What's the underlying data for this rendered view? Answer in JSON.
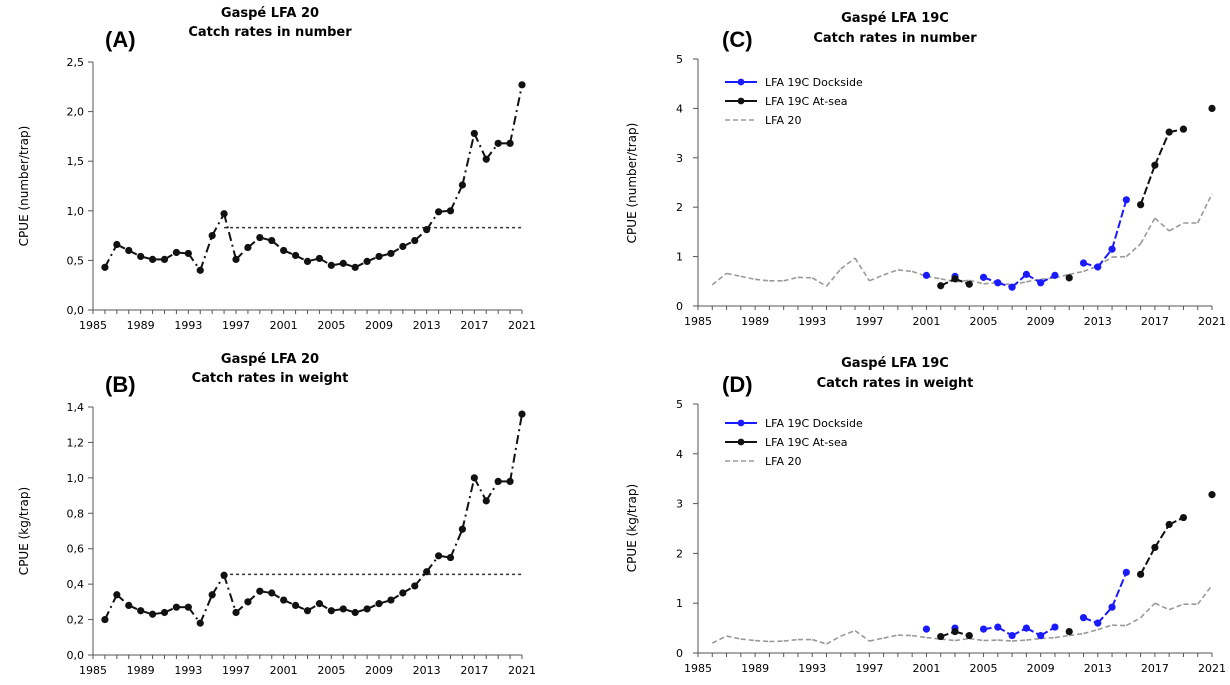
{
  "chart_data": [
    {
      "type": "line",
      "letter": "(A)",
      "title": [
        "Gaspé LFA 20",
        "Catch rates in number"
      ],
      "ylabel": "CPUE (number/trap)",
      "ylim": [
        0,
        2.5
      ],
      "yticks": [
        0,
        0.5,
        1.0,
        1.5,
        2.0,
        2.5
      ],
      "ytick_labels": [
        "0,0",
        "0,5",
        "1,0",
        "1,5",
        "2,0",
        "2,5"
      ],
      "xlim": [
        1985,
        2021
      ],
      "xticks": [
        "1985",
        "1989",
        "1993",
        "1997",
        "2001",
        "2005",
        "2009",
        "2013",
        "2017",
        "2021"
      ],
      "reference_line": {
        "value": 0.83,
        "from": 1996,
        "to": 2021
      },
      "series": [
        {
          "color": "#111111",
          "style": "dashdot",
          "markers": true,
          "x": [
            1986,
            1987,
            1988,
            1989,
            1990,
            1991,
            1992,
            1993,
            1994,
            1995,
            1996,
            1997,
            1998,
            1999,
            2000,
            2001,
            2002,
            2003,
            2004,
            2005,
            2006,
            2007,
            2008,
            2009,
            2010,
            2011,
            2012,
            2013,
            2014,
            2015,
            2016,
            2017,
            2018,
            2019,
            2020,
            2021
          ],
          "values": [
            0.43,
            0.66,
            0.6,
            0.54,
            0.51,
            0.51,
            0.58,
            0.57,
            0.4,
            0.75,
            0.97,
            0.51,
            0.63,
            0.73,
            0.7,
            0.6,
            0.55,
            0.49,
            0.52,
            0.45,
            0.47,
            0.43,
            0.49,
            0.54,
            0.57,
            0.64,
            0.7,
            0.81,
            0.99,
            1.0,
            1.26,
            1.78,
            1.52,
            1.68,
            1.68,
            2.27
          ]
        }
      ]
    },
    {
      "type": "line",
      "letter": "(B)",
      "title": [
        "Gaspé LFA 20",
        "Catch rates in weight"
      ],
      "ylabel": "CPUE (kg/trap)",
      "ylim": [
        0,
        1.4
      ],
      "yticks": [
        0,
        0.2,
        0.4,
        0.6,
        0.8,
        1.0,
        1.2,
        1.4
      ],
      "ytick_labels": [
        "0,0",
        "0,2",
        "0,4",
        "0,6",
        "0,8",
        "1,0",
        "1,2",
        "1,4"
      ],
      "xlim": [
        1985,
        2021
      ],
      "xticks": [
        "1985",
        "1989",
        "1993",
        "1997",
        "2001",
        "2005",
        "2009",
        "2013",
        "2017",
        "2021"
      ],
      "reference_line": {
        "value": 0.455,
        "from": 1996,
        "to": 2021
      },
      "series": [
        {
          "color": "#111111",
          "style": "dashdot",
          "markers": true,
          "x": [
            1986,
            1987,
            1988,
            1989,
            1990,
            1991,
            1992,
            1993,
            1994,
            1995,
            1996,
            1997,
            1998,
            1999,
            2000,
            2001,
            2002,
            2003,
            2004,
            2005,
            2006,
            2007,
            2008,
            2009,
            2010,
            2011,
            2012,
            2013,
            2014,
            2015,
            2016,
            2017,
            2018,
            2019,
            2020,
            2021
          ],
          "values": [
            0.2,
            0.34,
            0.28,
            0.25,
            0.23,
            0.24,
            0.27,
            0.27,
            0.18,
            0.34,
            0.45,
            0.24,
            0.3,
            0.36,
            0.35,
            0.31,
            0.28,
            0.25,
            0.29,
            0.25,
            0.26,
            0.24,
            0.26,
            0.29,
            0.31,
            0.35,
            0.39,
            0.47,
            0.56,
            0.55,
            0.71,
            1.0,
            0.87,
            0.98,
            0.98,
            1.36
          ]
        }
      ]
    },
    {
      "type": "line",
      "letter": "(C)",
      "title": [
        "Gaspé LFA 19C",
        "Catch rates in number"
      ],
      "ylabel": "CPUE (number/trap)",
      "ylim": [
        0,
        5
      ],
      "yticks": [
        0,
        1,
        2,
        3,
        4,
        5
      ],
      "ytick_labels": [
        "0",
        "1",
        "2",
        "3",
        "4",
        "5"
      ],
      "xlim": [
        1985,
        2021
      ],
      "xticks": [
        "1985",
        "1989",
        "1993",
        "1997",
        "2001",
        "2005",
        "2009",
        "2013",
        "2017",
        "2021"
      ],
      "legend": [
        {
          "label": "LFA 19C Dockside",
          "color": "#1a1aff",
          "style": "solid",
          "marker": true
        },
        {
          "label": "LFA 19C At-sea",
          "color": "#111111",
          "style": "solid",
          "marker": true
        },
        {
          "label": "LFA 20",
          "color": "#999999",
          "style": "dashed",
          "marker": false
        }
      ],
      "series": [
        {
          "name": "LFA 20",
          "color": "#999999",
          "style": "dashed",
          "markers": false,
          "x": [
            1986,
            1987,
            1988,
            1989,
            1990,
            1991,
            1992,
            1993,
            1994,
            1995,
            1996,
            1997,
            1998,
            1999,
            2000,
            2001,
            2002,
            2003,
            2004,
            2005,
            2006,
            2007,
            2008,
            2009,
            2010,
            2011,
            2012,
            2013,
            2014,
            2015,
            2016,
            2017,
            2018,
            2019,
            2020,
            2021
          ],
          "values": [
            0.43,
            0.66,
            0.6,
            0.54,
            0.51,
            0.51,
            0.58,
            0.57,
            0.4,
            0.75,
            0.97,
            0.51,
            0.63,
            0.73,
            0.7,
            0.6,
            0.55,
            0.49,
            0.52,
            0.45,
            0.47,
            0.43,
            0.49,
            0.54,
            0.57,
            0.64,
            0.7,
            0.81,
            0.99,
            1.0,
            1.26,
            1.78,
            1.52,
            1.68,
            1.68,
            2.27
          ]
        },
        {
          "name": "LFA 19C Dockside",
          "color": "#1a1aff",
          "style": "dashed",
          "markers": true,
          "x": [
            2001,
            2003,
            2005,
            2006,
            2007,
            2008,
            2009,
            2010,
            2012,
            2013,
            2014,
            2015
          ],
          "values": [
            0.62,
            0.6,
            0.58,
            0.47,
            0.38,
            0.64,
            0.47,
            0.62,
            0.87,
            0.79,
            1.15,
            2.15
          ]
        },
        {
          "name": "LFA 19C At-sea",
          "color": "#111111",
          "style": "dashed",
          "markers": true,
          "x": [
            2002,
            2003,
            2004,
            2011,
            2016,
            2017,
            2018,
            2019,
            2021
          ],
          "values": [
            0.41,
            0.55,
            0.44,
            0.57,
            2.05,
            2.85,
            3.52,
            3.58,
            4.0
          ]
        }
      ]
    },
    {
      "type": "line",
      "letter": "(D)",
      "title": [
        "Gaspé LFA 19C",
        "Catch rates in weight"
      ],
      "ylabel": "CPUE (kg/trap)",
      "ylim": [
        0,
        5
      ],
      "yticks": [
        0,
        1,
        2,
        3,
        4,
        5
      ],
      "ytick_labels": [
        "0",
        "1",
        "2",
        "3",
        "4",
        "5"
      ],
      "xlim": [
        1985,
        2021
      ],
      "xticks": [
        "1985",
        "1989",
        "1993",
        "1997",
        "2001",
        "2005",
        "2009",
        "2013",
        "2017",
        "2021"
      ],
      "legend": [
        {
          "label": "LFA 19C Dockside",
          "color": "#1a1aff",
          "style": "solid",
          "marker": true
        },
        {
          "label": "LFA 19C At-sea",
          "color": "#111111",
          "style": "solid",
          "marker": true
        },
        {
          "label": "LFA 20",
          "color": "#999999",
          "style": "dashed",
          "marker": false
        }
      ],
      "series": [
        {
          "name": "LFA 20",
          "color": "#999999",
          "style": "dashed",
          "markers": false,
          "x": [
            1986,
            1987,
            1988,
            1989,
            1990,
            1991,
            1992,
            1993,
            1994,
            1995,
            1996,
            1997,
            1998,
            1999,
            2000,
            2001,
            2002,
            2003,
            2004,
            2005,
            2006,
            2007,
            2008,
            2009,
            2010,
            2011,
            2012,
            2013,
            2014,
            2015,
            2016,
            2017,
            2018,
            2019,
            2020,
            2021
          ],
          "values": [
            0.2,
            0.34,
            0.28,
            0.25,
            0.23,
            0.24,
            0.27,
            0.27,
            0.18,
            0.34,
            0.45,
            0.24,
            0.3,
            0.36,
            0.35,
            0.31,
            0.28,
            0.25,
            0.29,
            0.25,
            0.26,
            0.24,
            0.26,
            0.29,
            0.31,
            0.35,
            0.39,
            0.47,
            0.56,
            0.55,
            0.71,
            1.0,
            0.87,
            0.98,
            0.98,
            1.36
          ]
        },
        {
          "name": "LFA 19C Dockside",
          "color": "#1a1aff",
          "style": "dashed",
          "markers": true,
          "x": [
            2001,
            2003,
            2005,
            2006,
            2007,
            2008,
            2009,
            2010,
            2012,
            2013,
            2014,
            2015
          ],
          "values": [
            0.48,
            0.5,
            0.48,
            0.52,
            0.35,
            0.5,
            0.35,
            0.52,
            0.71,
            0.6,
            0.92,
            1.62
          ]
        },
        {
          "name": "LFA 19C At-sea",
          "color": "#111111",
          "style": "dashed",
          "markers": true,
          "x": [
            2002,
            2003,
            2004,
            2011,
            2016,
            2017,
            2018,
            2019,
            2021
          ],
          "values": [
            0.33,
            0.43,
            0.35,
            0.43,
            1.58,
            2.12,
            2.58,
            2.72,
            3.18
          ]
        }
      ]
    }
  ]
}
